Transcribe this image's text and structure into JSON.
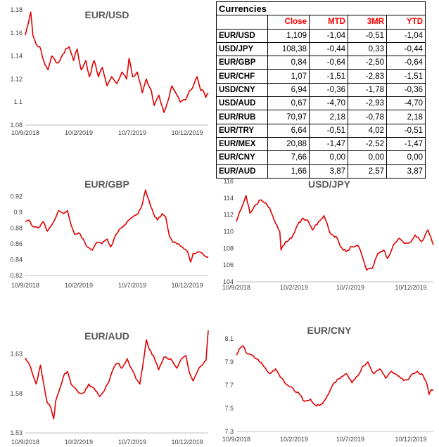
{
  "table": {
    "title": "Currencies",
    "columns": [
      "Close",
      "MTD",
      "3MR",
      "YTD"
    ],
    "rows": [
      {
        "name": "EUR/USD",
        "close": "1,109",
        "mtd": "-1,04",
        "m3": "-0,51",
        "ytd": "-1,04"
      },
      {
        "name": "USD/JPY",
        "close": "108,38",
        "mtd": "-0,44",
        "m3": "0,33",
        "ytd": "-0,44"
      },
      {
        "name": "EUR/GBP",
        "close": "0,84",
        "mtd": "-0,64",
        "m3": "-2,50",
        "ytd": "-0,64"
      },
      {
        "name": "EUR/CHF",
        "close": "1,07",
        "mtd": "-1,51",
        "m3": "-2,83",
        "ytd": "-1,51"
      },
      {
        "name": "USD/CNY",
        "close": "6,94",
        "mtd": "-0,36",
        "m3": "-1,78",
        "ytd": "-0,36"
      },
      {
        "name": "USD/AUD",
        "close": "0,67",
        "mtd": "-4,70",
        "m3": "-2,93",
        "ytd": "-4,70"
      },
      {
        "name": "EUR/RUB",
        "close": "70,97",
        "mtd": "2,18",
        "m3": "-0,78",
        "ytd": "2,18"
      },
      {
        "name": "EUR/TRY",
        "close": "6,64",
        "mtd": "-0,51",
        "m3": "4,02",
        "ytd": "-0,51"
      },
      {
        "name": "EUR/MEX",
        "close": "20,88",
        "mtd": "-1,47",
        "m3": "-2,52",
        "ytd": "-1,47"
      },
      {
        "name": "EUR/CNY",
        "close": "7,66",
        "mtd": "0,00",
        "m3": "0,00",
        "ytd": "0,00"
      },
      {
        "name": "EUR/AUD",
        "close": "1,66",
        "mtd": "3,87",
        "m3": "2,57",
        "ytd": "3,87"
      }
    ]
  },
  "chart_data": [
    {
      "id": "eurusd",
      "type": "line",
      "title": "EUR/USD",
      "color": "#e00000",
      "x_ticks": [
        "10/9/2018",
        "10/2/2019",
        "10/7/2019",
        "10/12/2019"
      ],
      "y_ticks": [
        "1.18",
        "1.16",
        "1.14",
        "1.12",
        "1.1",
        "1.08"
      ],
      "ylim": [
        1.08,
        1.18
      ],
      "x_range": [
        "2018-09-10",
        "2020-01-31"
      ],
      "points": [
        [
          "2018-09-10",
          1.158
        ],
        [
          "2018-09-18",
          1.168
        ],
        [
          "2018-09-25",
          1.178
        ],
        [
          "2018-10-01",
          1.158
        ],
        [
          "2018-10-10",
          1.15
        ],
        [
          "2018-10-20",
          1.148
        ],
        [
          "2018-10-31",
          1.136
        ],
        [
          "2018-11-12",
          1.128
        ],
        [
          "2018-11-22",
          1.14
        ],
        [
          "2018-12-05",
          1.134
        ],
        [
          "2018-12-15",
          1.136
        ],
        [
          "2018-12-31",
          1.146
        ],
        [
          "2019-01-10",
          1.148
        ],
        [
          "2019-01-22",
          1.136
        ],
        [
          "2019-02-01",
          1.146
        ],
        [
          "2019-02-12",
          1.128
        ],
        [
          "2019-02-25",
          1.136
        ],
        [
          "2019-03-07",
          1.122
        ],
        [
          "2019-03-20",
          1.136
        ],
        [
          "2019-04-01",
          1.122
        ],
        [
          "2019-04-12",
          1.13
        ],
        [
          "2019-04-25",
          1.114
        ],
        [
          "2019-05-08",
          1.122
        ],
        [
          "2019-05-22",
          1.116
        ],
        [
          "2019-06-05",
          1.126
        ],
        [
          "2019-06-18",
          1.12
        ],
        [
          "2019-06-25",
          1.138
        ],
        [
          "2019-07-05",
          1.122
        ],
        [
          "2019-07-18",
          1.126
        ],
        [
          "2019-08-01",
          1.108
        ],
        [
          "2019-08-12",
          1.12
        ],
        [
          "2019-08-26",
          1.11
        ],
        [
          "2019-09-03",
          1.097
        ],
        [
          "2019-09-16",
          1.106
        ],
        [
          "2019-09-30",
          1.091
        ],
        [
          "2019-10-10",
          1.1
        ],
        [
          "2019-10-22",
          1.114
        ],
        [
          "2019-11-05",
          1.106
        ],
        [
          "2019-11-14",
          1.1
        ],
        [
          "2019-11-29",
          1.102
        ],
        [
          "2019-12-10",
          1.11
        ],
        [
          "2019-12-18",
          1.112
        ],
        [
          "2019-12-31",
          1.122
        ],
        [
          "2020-01-10",
          1.11
        ],
        [
          "2020-01-17",
          1.11
        ],
        [
          "2020-01-24",
          1.104
        ],
        [
          "2020-01-31",
          1.108
        ]
      ]
    },
    {
      "id": "eurgbp",
      "type": "line",
      "title": "EUR/GBP",
      "color": "#e00000",
      "x_ticks": [
        "10/9/2018",
        "10/2/2019",
        "10/7/2019",
        "10/12/2019"
      ],
      "y_ticks": [
        "0.92",
        "0.9",
        "0.88",
        "0.86",
        "0.84",
        "0.82"
      ],
      "ylim": [
        0.82,
        0.93
      ],
      "x_range": [
        "2018-09-10",
        "2020-01-31"
      ],
      "points": [
        [
          "2018-09-10",
          0.888
        ],
        [
          "2018-09-20",
          0.89
        ],
        [
          "2018-10-01",
          0.882
        ],
        [
          "2018-10-15",
          0.88
        ],
        [
          "2018-10-30",
          0.888
        ],
        [
          "2018-11-10",
          0.876
        ],
        [
          "2018-11-20",
          0.882
        ],
        [
          "2018-11-30",
          0.89
        ],
        [
          "2018-12-12",
          0.902
        ],
        [
          "2018-12-25",
          0.898
        ],
        [
          "2019-01-05",
          0.902
        ],
        [
          "2019-01-15",
          0.884
        ],
        [
          "2019-01-25",
          0.872
        ],
        [
          "2019-02-05",
          0.874
        ],
        [
          "2019-02-18",
          0.866
        ],
        [
          "2019-03-01",
          0.856
        ],
        [
          "2019-03-15",
          0.852
        ],
        [
          "2019-03-28",
          0.862
        ],
        [
          "2019-04-10",
          0.86
        ],
        [
          "2019-04-25",
          0.866
        ],
        [
          "2019-05-05",
          0.856
        ],
        [
          "2019-05-20",
          0.872
        ],
        [
          "2019-06-03",
          0.88
        ],
        [
          "2019-06-20",
          0.888
        ],
        [
          "2019-07-05",
          0.894
        ],
        [
          "2019-07-20",
          0.898
        ],
        [
          "2019-08-01",
          0.91
        ],
        [
          "2019-08-10",
          0.928
        ],
        [
          "2019-08-20",
          0.914
        ],
        [
          "2019-09-01",
          0.898
        ],
        [
          "2019-09-12",
          0.89
        ],
        [
          "2019-09-25",
          0.898
        ],
        [
          "2019-10-05",
          0.894
        ],
        [
          "2019-10-15",
          0.87
        ],
        [
          "2019-10-25",
          0.862
        ],
        [
          "2019-11-05",
          0.86
        ],
        [
          "2019-11-20",
          0.856
        ],
        [
          "2019-12-05",
          0.85
        ],
        [
          "2019-12-13",
          0.837
        ],
        [
          "2019-12-20",
          0.848
        ],
        [
          "2020-01-05",
          0.85
        ],
        [
          "2020-01-15",
          0.848
        ],
        [
          "2020-01-24",
          0.844
        ],
        [
          "2020-01-31",
          0.844
        ]
      ]
    },
    {
      "id": "usdjpy",
      "type": "line",
      "title": "USD/JPY",
      "color": "#e00000",
      "x_ticks": [
        "10/9/2018",
        "10/2/2019",
        "10/7/2019",
        "10/12/2019"
      ],
      "y_ticks": [
        "116",
        "114",
        "112",
        "110",
        "108",
        "106",
        "104"
      ],
      "ylim": [
        104,
        116
      ],
      "x_range": [
        "2018-09-10",
        "2020-01-31"
      ],
      "points": [
        [
          "2018-09-10",
          111.2
        ],
        [
          "2018-09-20",
          112.5
        ],
        [
          "2018-10-01",
          113.8
        ],
        [
          "2018-10-05",
          114.3
        ],
        [
          "2018-10-15",
          112.2
        ],
        [
          "2018-10-30",
          113.2
        ],
        [
          "2018-11-12",
          113.8
        ],
        [
          "2018-11-25",
          113.4
        ],
        [
          "2018-12-05",
          112.8
        ],
        [
          "2018-12-20",
          111.0
        ],
        [
          "2018-12-31",
          110.0
        ],
        [
          "2019-01-03",
          107.8
        ],
        [
          "2019-01-15",
          108.8
        ],
        [
          "2019-01-30",
          109.2
        ],
        [
          "2019-02-15",
          110.8
        ],
        [
          "2019-03-01",
          111.6
        ],
        [
          "2019-03-15",
          111.2
        ],
        [
          "2019-03-25",
          110.2
        ],
        [
          "2019-04-10",
          111.2
        ],
        [
          "2019-04-24",
          111.9
        ],
        [
          "2019-05-10",
          109.8
        ],
        [
          "2019-05-25",
          109.4
        ],
        [
          "2019-06-05",
          108.2
        ],
        [
          "2019-06-20",
          107.6
        ],
        [
          "2019-07-05",
          108.2
        ],
        [
          "2019-07-20",
          108.4
        ],
        [
          "2019-08-01",
          107.0
        ],
        [
          "2019-08-12",
          105.4
        ],
        [
          "2019-08-26",
          105.6
        ],
        [
          "2019-09-10",
          107.4
        ],
        [
          "2019-09-25",
          107.8
        ],
        [
          "2019-10-05",
          106.8
        ],
        [
          "2019-10-20",
          108.4
        ],
        [
          "2019-11-05",
          109.2
        ],
        [
          "2019-11-20",
          108.6
        ],
        [
          "2019-12-05",
          108.8
        ],
        [
          "2019-12-15",
          109.6
        ],
        [
          "2019-12-31",
          108.8
        ],
        [
          "2020-01-10",
          109.6
        ],
        [
          "2020-01-17",
          110.2
        ],
        [
          "2020-01-24",
          109.4
        ],
        [
          "2020-01-31",
          108.4
        ]
      ]
    },
    {
      "id": "euraud",
      "type": "line",
      "title": "EUR/AUD",
      "color": "#e00000",
      "x_ticks": [
        "10/9/2018",
        "10/2/2019",
        "10/7/2019",
        "10/12/2019"
      ],
      "y_ticks": [
        "1.63",
        "1.58",
        "1.53"
      ],
      "ylim": [
        1.53,
        1.66
      ],
      "x_range": [
        "2018-09-10",
        "2020-01-31"
      ],
      "points": [
        [
          "2018-09-10",
          1.625
        ],
        [
          "2018-09-20",
          1.618
        ],
        [
          "2018-09-30",
          1.605
        ],
        [
          "2018-10-10",
          1.592
        ],
        [
          "2018-10-22",
          1.616
        ],
        [
          "2018-11-01",
          1.59
        ],
        [
          "2018-11-10",
          1.568
        ],
        [
          "2018-11-20",
          1.562
        ],
        [
          "2018-11-28",
          1.548
        ],
        [
          "2018-12-03",
          1.57
        ],
        [
          "2018-12-12",
          1.582
        ],
        [
          "2018-12-25",
          1.602
        ],
        [
          "2019-01-05",
          1.608
        ],
        [
          "2019-01-15",
          1.592
        ],
        [
          "2019-01-28",
          1.586
        ],
        [
          "2019-02-10",
          1.58
        ],
        [
          "2019-02-22",
          1.582
        ],
        [
          "2019-03-05",
          1.592
        ],
        [
          "2019-03-15",
          1.588
        ],
        [
          "2019-03-28",
          1.582
        ],
        [
          "2019-04-05",
          1.576
        ],
        [
          "2019-04-18",
          1.584
        ],
        [
          "2019-05-01",
          1.596
        ],
        [
          "2019-05-15",
          1.614
        ],
        [
          "2019-05-25",
          1.618
        ],
        [
          "2019-06-05",
          1.612
        ],
        [
          "2019-06-20",
          1.624
        ],
        [
          "2019-07-01",
          1.612
        ],
        [
          "2019-07-15",
          1.598
        ],
        [
          "2019-07-25",
          1.592
        ],
        [
          "2019-08-05",
          1.624
        ],
        [
          "2019-08-12",
          1.648
        ],
        [
          "2019-08-20",
          1.636
        ],
        [
          "2019-09-01",
          1.628
        ],
        [
          "2019-09-15",
          1.61
        ],
        [
          "2019-09-30",
          1.626
        ],
        [
          "2019-10-10",
          1.624
        ],
        [
          "2019-10-22",
          1.622
        ],
        [
          "2019-11-05",
          1.612
        ],
        [
          "2019-11-18",
          1.624
        ],
        [
          "2019-11-30",
          1.628
        ],
        [
          "2019-12-10",
          1.606
        ],
        [
          "2019-12-20",
          1.596
        ],
        [
          "2020-01-05",
          1.612
        ],
        [
          "2020-01-15",
          1.616
        ],
        [
          "2020-01-25",
          1.622
        ],
        [
          "2020-01-31",
          1.66
        ]
      ]
    },
    {
      "id": "eurcny",
      "type": "line",
      "title": "EUR/CNY",
      "color": "#e00000",
      "x_ticks": [
        "10/9/2018",
        "10/2/2019",
        "10/7/2019",
        "10/12/2019"
      ],
      "y_ticks": [
        "8.1",
        "7.9",
        "7.7",
        "7.5",
        "7.3"
      ],
      "ylim": [
        7.3,
        8.1
      ],
      "x_range": [
        "2018-09-10",
        "2020-01-31"
      ],
      "points": [
        [
          "2018-09-10",
          7.96
        ],
        [
          "2018-09-20",
          8.02
        ],
        [
          "2018-09-27",
          8.04
        ],
        [
          "2018-10-05",
          7.98
        ],
        [
          "2018-10-20",
          7.96
        ],
        [
          "2018-11-05",
          7.92
        ],
        [
          "2018-11-20",
          7.86
        ],
        [
          "2018-12-05",
          7.8
        ],
        [
          "2018-12-20",
          7.84
        ],
        [
          "2019-01-05",
          7.76
        ],
        [
          "2019-01-20",
          7.7
        ],
        [
          "2019-02-05",
          7.66
        ],
        [
          "2019-02-20",
          7.62
        ],
        [
          "2019-03-05",
          7.56
        ],
        [
          "2019-03-20",
          7.58
        ],
        [
          "2019-04-05",
          7.52
        ],
        [
          "2019-04-20",
          7.54
        ],
        [
          "2019-05-05",
          7.62
        ],
        [
          "2019-05-20",
          7.72
        ],
        [
          "2019-06-05",
          7.76
        ],
        [
          "2019-06-20",
          7.8
        ],
        [
          "2019-07-05",
          7.72
        ],
        [
          "2019-07-20",
          7.78
        ],
        [
          "2019-08-01",
          7.86
        ],
        [
          "2019-08-15",
          7.9
        ],
        [
          "2019-08-30",
          7.8
        ],
        [
          "2019-09-15",
          7.84
        ],
        [
          "2019-09-30",
          7.76
        ],
        [
          "2019-10-15",
          7.82
        ],
        [
          "2019-10-31",
          7.78
        ],
        [
          "2019-11-15",
          7.74
        ],
        [
          "2019-11-30",
          7.76
        ],
        [
          "2019-12-10",
          7.8
        ],
        [
          "2019-12-20",
          7.82
        ],
        [
          "2020-01-05",
          7.78
        ],
        [
          "2020-01-15",
          7.7
        ],
        [
          "2020-01-20",
          7.62
        ],
        [
          "2020-01-25",
          7.66
        ],
        [
          "2020-01-31",
          7.66
        ]
      ]
    }
  ]
}
